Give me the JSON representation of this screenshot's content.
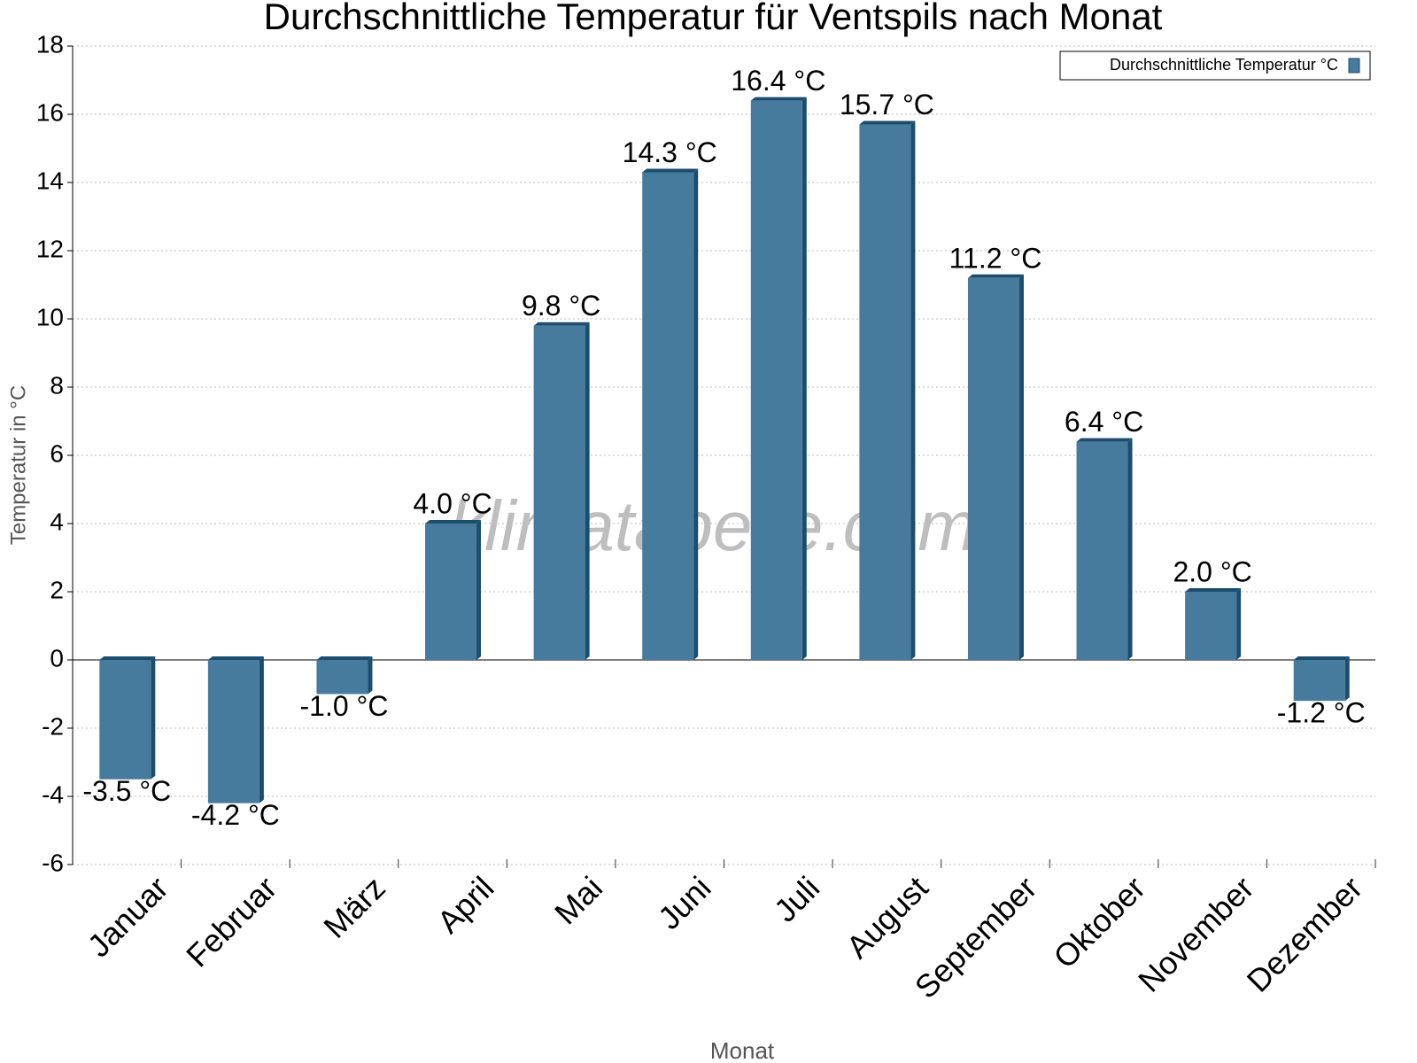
{
  "chart_data": {
    "type": "bar",
    "title": "Durchschnittliche Temperatur für Ventspils nach Monat",
    "y_label": "Temperatur in °C",
    "x_label": "Monat",
    "watermark": "klimatabelle.com",
    "categories": [
      "Januar",
      "Februar",
      "März",
      "April",
      "Mai",
      "Juni",
      "Juli",
      "August",
      "September",
      "Oktober",
      "November",
      "Dezember"
    ],
    "series": [
      {
        "name": "Durchschnittliche Temperatur °C",
        "color": "#467b9e",
        "values": [
          -3.5,
          -4.2,
          -1.0,
          4.0,
          9.8,
          14.3,
          16.4,
          15.7,
          11.2,
          6.4,
          2.0,
          -1.2
        ],
        "value_labels": [
          "-3.5 °C",
          "-4.2 °C",
          "-1.0 °C",
          "4.0 °C",
          "9.8 °C",
          "14.3 °C",
          "16.4 °C",
          "15.7 °C",
          "11.2 °C",
          "6.4 °C",
          "2.0 °C",
          "-1.2 °C"
        ]
      }
    ],
    "ylim": [
      -6,
      18
    ],
    "yticks": [
      -6,
      -4,
      -2,
      0,
      2,
      4,
      6,
      8,
      10,
      12,
      14,
      16,
      18
    ],
    "grid": true,
    "legend": "top-right"
  }
}
